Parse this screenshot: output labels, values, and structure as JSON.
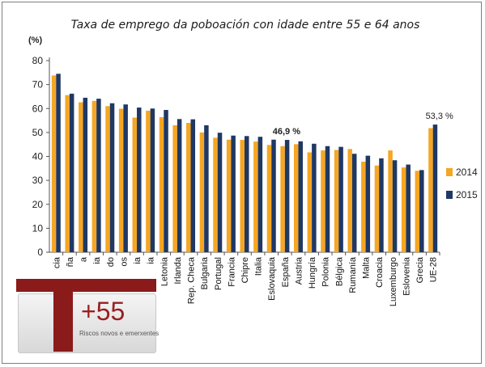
{
  "chart_data": {
    "type": "bar",
    "title": "Taxa de emprego da poboación con idade entre 55 e 64 anos",
    "unit_label": "(%)",
    "ylim": [
      0,
      80
    ],
    "yticks": [
      0,
      10,
      20,
      30,
      40,
      50,
      60,
      70,
      80
    ],
    "grid": false,
    "legend_position": "right",
    "categories": [
      "Suecia",
      "Alemaña",
      "Estonia",
      "Dinamarca",
      "Reino Unido",
      "Países Baixos",
      "Lituania",
      "Finlandia",
      "Letonia",
      "Irlanda",
      "Rep. Checa",
      "Bulgaria",
      "Portugal",
      "Francia",
      "Chipre",
      "Italia",
      "Eslovaquia",
      "España",
      "Austria",
      "Hungría",
      "Polonia",
      "Bélgica",
      "Rumanía",
      "Malta",
      "Croacia",
      "Luxemburgo",
      "Eslovenia",
      "Grecia",
      "UE-28"
    ],
    "category_labels_visible": [
      "cia",
      "ña",
      "a",
      "ia",
      "do",
      "os",
      "ia",
      "ia",
      "Letonia",
      "Irlanda",
      "Rep. Checa",
      "Bulgaria",
      "Portugal",
      "Francia",
      "Chipre",
      "Italia",
      "Eslovaquia",
      "España",
      "Austria",
      "Hungría",
      "Polonia",
      "Bélgica",
      "Rumanía",
      "Malta",
      "Croacia",
      "Luxemburgo",
      "Eslovenia",
      "Grecia",
      "UE-28"
    ],
    "series": [
      {
        "name": "2014",
        "color": "#f5a623",
        "values": [
          73.8,
          65.6,
          62.6,
          63.2,
          61.0,
          59.9,
          56.2,
          59.1,
          56.4,
          53.0,
          54.0,
          50.0,
          47.8,
          47.0,
          46.9,
          46.2,
          44.8,
          44.3,
          45.1,
          41.7,
          42.5,
          42.7,
          43.1,
          37.8,
          36.2,
          42.5,
          35.4,
          34.0,
          51.8
        ]
      },
      {
        "name": "2015",
        "color": "#1f3864",
        "values": [
          74.5,
          66.2,
          64.5,
          64.1,
          62.2,
          61.7,
          60.4,
          60.0,
          59.4,
          55.6,
          55.5,
          53.0,
          49.9,
          48.7,
          48.5,
          48.2,
          47.0,
          46.9,
          46.3,
          45.3,
          44.3,
          44.0,
          41.1,
          40.3,
          39.2,
          38.4,
          36.6,
          34.3,
          53.3
        ]
      }
    ],
    "annotations": [
      {
        "text": "46,9 %",
        "category": "España",
        "series": "2015"
      },
      {
        "text": "53,3 %",
        "category": "UE-28",
        "series": "2015"
      }
    ]
  },
  "logo": {
    "number": "+55",
    "tagline": "Riscos novos e emerxentes",
    "color": "#8b1a1a"
  }
}
